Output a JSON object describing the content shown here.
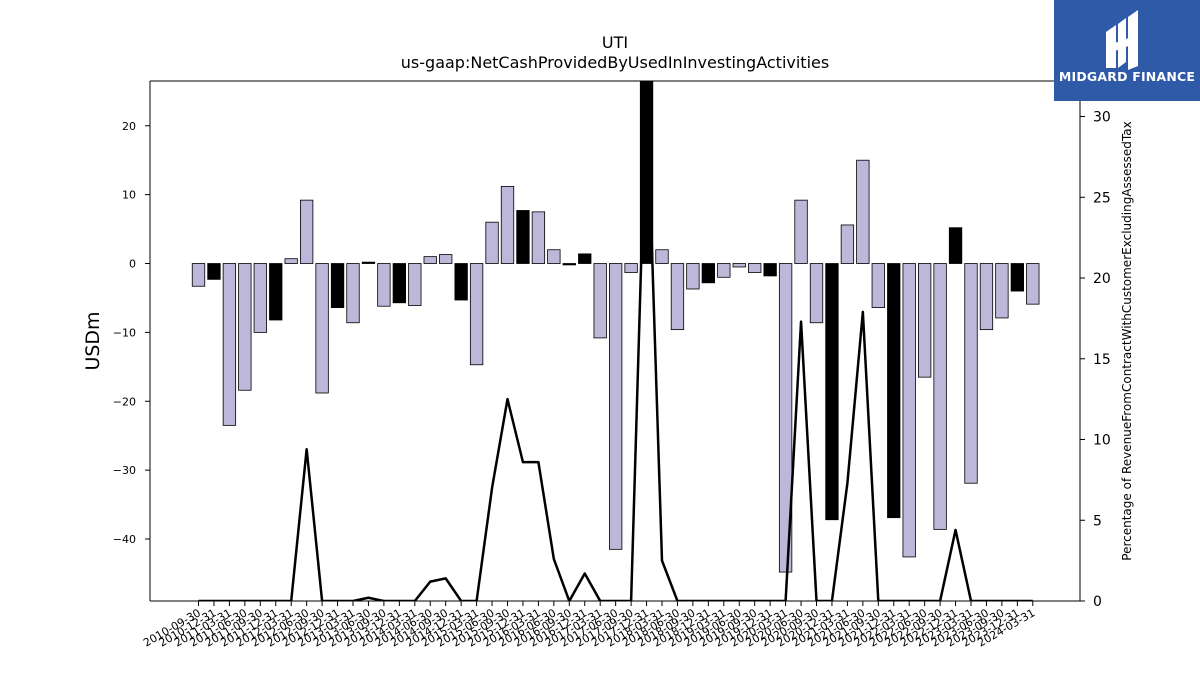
{
  "logo": {
    "text": "MIDGARD FINANCE",
    "background": "#2f5aa8"
  },
  "chart_data": {
    "type": "bar",
    "title": "UTI",
    "subtitle": "us-gaap:NetCashProvidedByUsedInInvestingActivities",
    "ylabel": "USDm",
    "y2label": "Percentage of RevenueFromContractWithCustomerExcludingAssessedTax",
    "ylim": [
      -49,
      26.5
    ],
    "y2lim": [
      0,
      32.2
    ],
    "yticks": [
      20,
      10,
      0,
      -10,
      -20,
      -30,
      -40
    ],
    "y2ticks": [
      0,
      5,
      10,
      15,
      20,
      25,
      30
    ],
    "colors": {
      "positive_bar": "#000000",
      "negative_bar": "#000000",
      "bar_fill": "#bcb8d9",
      "highlight_fill": "#000000",
      "line": "#000000"
    },
    "categories": [
      "2010-09-30",
      "2010-12-31",
      "2011-03-31",
      "2011-06-30",
      "2011-09-30",
      "2011-12-31",
      "2012-03-31",
      "2012-06-30",
      "2012-09-30",
      "2012-12-31",
      "2013-03-31",
      "2013-06-30",
      "2013-09-30",
      "2013-12-31",
      "2014-03-31",
      "2014-06-30",
      "2014-09-30",
      "2014-12-31",
      "2015-03-31",
      "2015-06-30",
      "2015-09-30",
      "2015-12-31",
      "2016-03-31",
      "2016-06-30",
      "2016-09-30",
      "2016-12-31",
      "2017-03-31",
      "2017-06-30",
      "2017-09-30",
      "2017-12-31",
      "2018-03-31",
      "2018-06-30",
      "2018-09-30",
      "2018-12-31",
      "2019-03-31",
      "2019-06-30",
      "2019-09-30",
      "2019-12-31",
      "2020-03-31",
      "2020-06-30",
      "2020-09-30",
      "2020-12-31",
      "2021-03-31",
      "2021-06-30",
      "2021-09-30",
      "2021-12-31",
      "2022-03-31",
      "2022-06-30",
      "2022-09-30",
      "2022-12-31",
      "2023-03-31",
      "2023-06-30",
      "2023-09-30",
      "2023-12-31",
      "2024-03-31"
    ],
    "series": [
      {
        "values": [
          -3.3,
          -2.3,
          -23.5,
          -18.4,
          -10.0,
          -8.2,
          0.7,
          9.2,
          -18.8,
          -6.4,
          -8.6,
          0.2,
          -6.2,
          -5.7,
          -6.1,
          1.0,
          1.3,
          -5.3,
          -14.7,
          6.0,
          11.2,
          7.7,
          7.5,
          2.0,
          -0.2,
          1.4,
          -10.8,
          -41.5,
          -1.3,
          26.5,
          2.0,
          -9.6,
          -3.7,
          -2.8,
          -2.0,
          -0.5,
          -1.3,
          -1.8,
          -44.8,
          9.2,
          -8.6,
          -37.2,
          5.6,
          15.0,
          -6.4,
          -36.9,
          -42.6,
          -16.5,
          -38.6,
          5.2,
          -31.9,
          -9.6,
          -7.9,
          -4.0,
          -5.9
        ],
        "highlight": [
          false,
          true,
          false,
          false,
          false,
          true,
          false,
          false,
          false,
          true,
          false,
          true,
          false,
          true,
          false,
          false,
          false,
          true,
          false,
          false,
          false,
          true,
          false,
          false,
          true,
          true,
          false,
          false,
          false,
          true,
          false,
          false,
          false,
          true,
          false,
          false,
          false,
          true,
          false,
          false,
          false,
          true,
          false,
          false,
          false,
          true,
          false,
          false,
          false,
          true,
          false,
          false,
          false,
          true,
          false
        ]
      },
      {
        "axis": "y2",
        "type": "line",
        "values": [
          0,
          0,
          0,
          0,
          0,
          0,
          0,
          9.4,
          0,
          0,
          0,
          0.2,
          0,
          0,
          0,
          1.2,
          1.4,
          0,
          0,
          7.0,
          12.5,
          8.6,
          8.6,
          2.6,
          0,
          1.7,
          0,
          0,
          0,
          32.2,
          2.5,
          0,
          0,
          0,
          0,
          0,
          0,
          0,
          0,
          17.3,
          0,
          0,
          7.3,
          17.9,
          0,
          0,
          0,
          0,
          0,
          4.4,
          0,
          0,
          0,
          0,
          0
        ]
      }
    ],
    "grid": false,
    "legend": "none"
  }
}
